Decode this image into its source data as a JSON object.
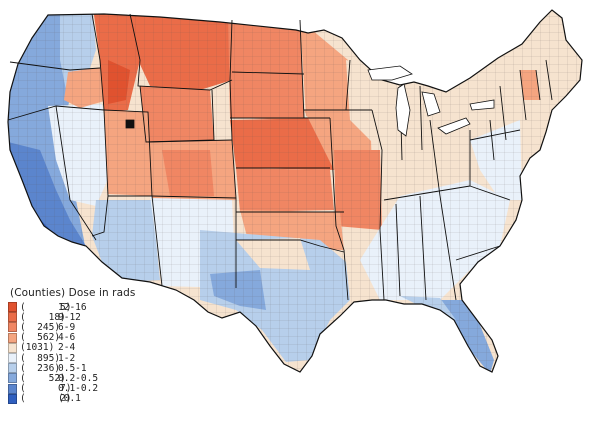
{
  "legend": {
    "title": "(Counties) Dose in rads",
    "items": [
      {
        "count": "(      5)",
        "range": "12-16",
        "color": "#e0522f"
      },
      {
        "count": "(    18)",
        "range": "9-12",
        "color": "#ea6c48"
      },
      {
        "count": "(  245)",
        "range": "6-9",
        "color": "#f08663"
      },
      {
        "count": "(  562)",
        "range": "4-6",
        "color": "#f5a580"
      },
      {
        "count": "(1031)",
        "range": "2-4",
        "color": "#f6e3cf"
      },
      {
        "count": "(  895)",
        "range": "1-2",
        "color": "#e9f1fa"
      },
      {
        "count": "(  236)",
        "range": "0.5-1",
        "color": "#b7cfeb"
      },
      {
        "count": "(    52)",
        "range": "0.2-0.5",
        "color": "#85a9dc"
      },
      {
        "count": "(      7)",
        "range": "0.1-0.2",
        "color": "#5b85cd"
      },
      {
        "count": "(      2)",
        "range": "(0.1",
        "color": "#2f5fbf"
      }
    ]
  },
  "map": {
    "subject": "contiguous United States county-level dose map",
    "regions": [
      {
        "name": "pacific-northwest",
        "class": "0.2-0.5"
      },
      {
        "name": "california-coast",
        "class": "0.5-1"
      },
      {
        "name": "southern-california",
        "class": "0.1-0.2"
      },
      {
        "name": "nevada",
        "class": "1-2"
      },
      {
        "name": "arizona",
        "class": "0.5-1"
      },
      {
        "name": "new-mexico",
        "class": "1-2"
      },
      {
        "name": "idaho-montana",
        "class": "9-12"
      },
      {
        "name": "utah-colorado",
        "class": "4-6"
      },
      {
        "name": "great-plains",
        "class": "6-9"
      },
      {
        "name": "texas",
        "class": "0.5-1"
      },
      {
        "name": "midwest",
        "class": "2-4"
      },
      {
        "name": "southeast",
        "class": "1-2"
      },
      {
        "name": "florida",
        "class": "0.2-0.5"
      },
      {
        "name": "northeast",
        "class": "2-4"
      },
      {
        "name": "vermont",
        "class": "4-6"
      }
    ]
  }
}
